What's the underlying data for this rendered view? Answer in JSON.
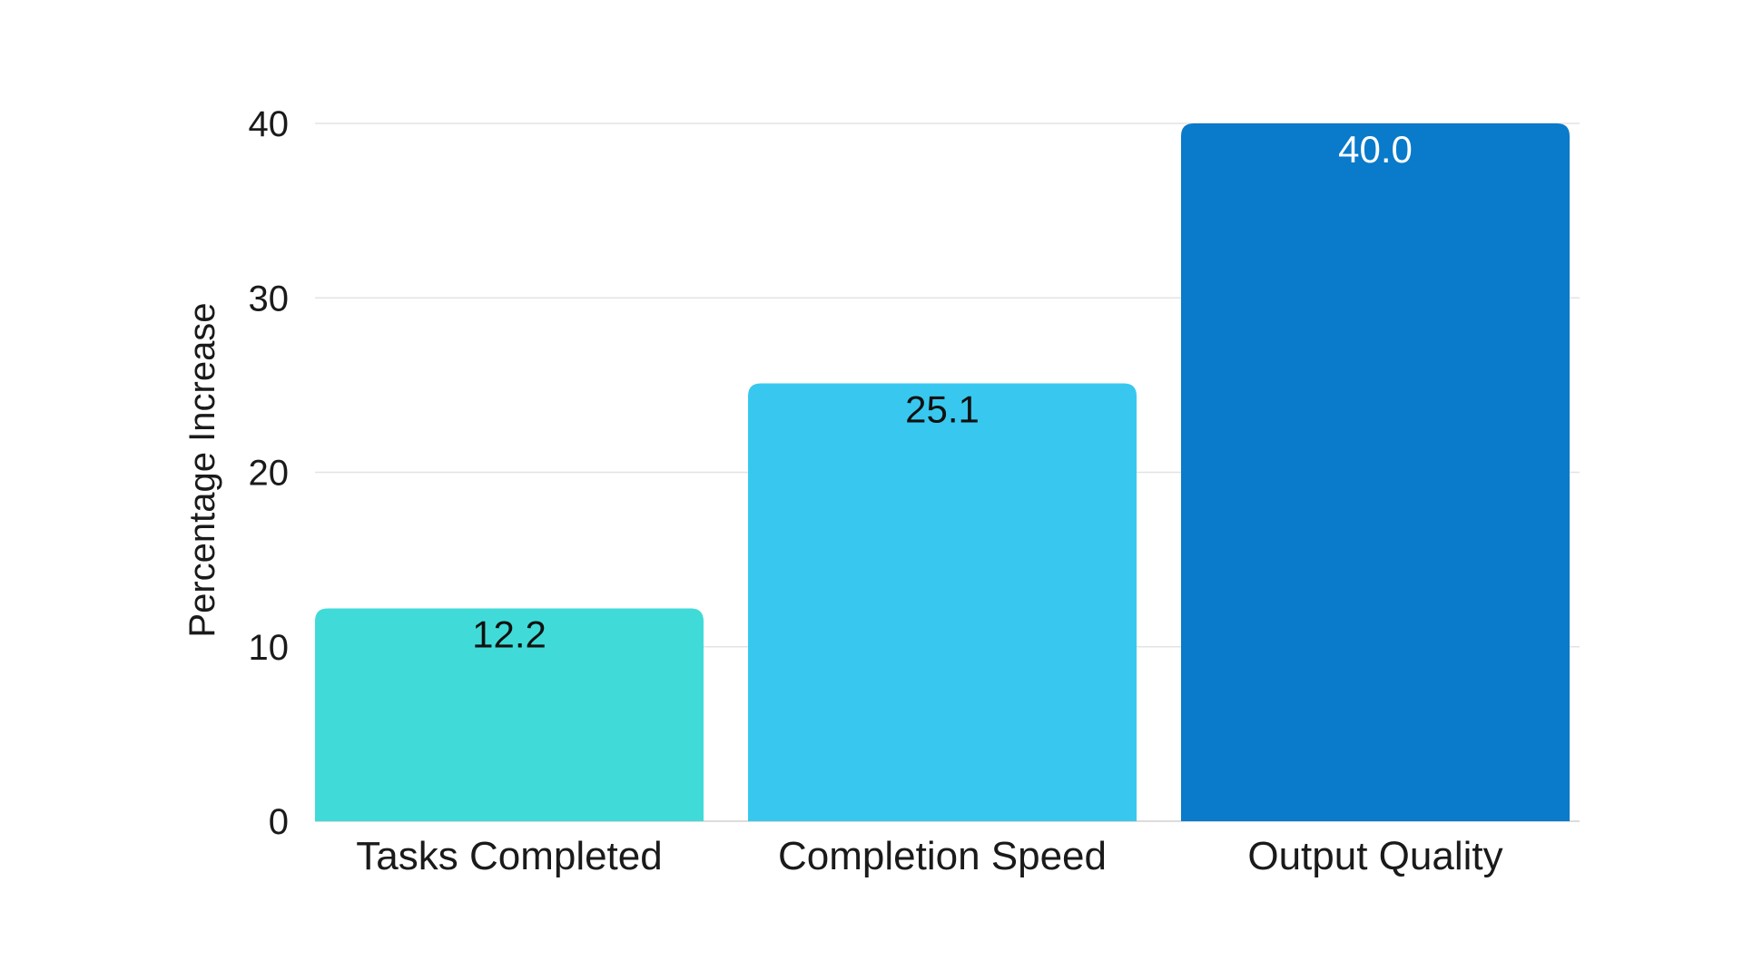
{
  "chart_data": {
    "type": "bar",
    "title": "",
    "xlabel": "",
    "ylabel": "Percentage Increase",
    "categories": [
      "Tasks Completed",
      "Completion Speed",
      "Output Quality"
    ],
    "values": [
      12.2,
      25.1,
      40.0
    ],
    "data_labels": [
      "12.2",
      "25.1",
      "40.0"
    ],
    "colors": [
      "#40DBD8",
      "#38C8EF",
      "#0A7ACA"
    ],
    "label_colors": [
      "#111111",
      "#111111",
      "#ffffff"
    ],
    "ylim": [
      0,
      40
    ],
    "yticks": [
      0,
      10,
      20,
      30,
      40
    ],
    "ytick_labels": [
      "0",
      "10",
      "20",
      "30",
      "40"
    ],
    "grid": true,
    "legend": "none"
  }
}
